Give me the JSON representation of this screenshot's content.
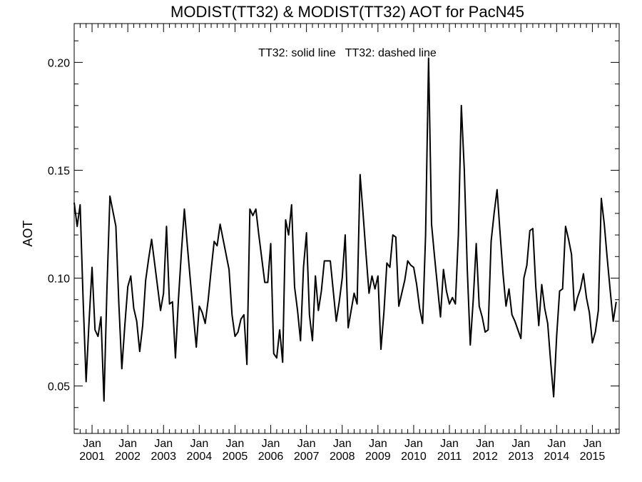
{
  "chart_data": {
    "type": "line",
    "title": "MODIST(TT32) & MODIST(TT32)  AOT for PacN45",
    "ylabel": "AOT",
    "xlabel": "",
    "annotation": "TT32: solid line   TT32: dashed line",
    "ylim": [
      0.028,
      0.218
    ],
    "xlim": [
      "2000-07",
      "2015-10"
    ],
    "y_ticks": [
      {
        "value": 0.05,
        "label": "0.05"
      },
      {
        "value": 0.1,
        "label": "0.10"
      },
      {
        "value": 0.15,
        "label": "0.15"
      },
      {
        "value": 0.2,
        "label": "0.20"
      }
    ],
    "x_ticks": [
      {
        "date": "2001-01",
        "month": "Jan",
        "year": "2001"
      },
      {
        "date": "2002-01",
        "month": "Jan",
        "year": "2002"
      },
      {
        "date": "2003-01",
        "month": "Jan",
        "year": "2003"
      },
      {
        "date": "2004-01",
        "month": "Jan",
        "year": "2004"
      },
      {
        "date": "2005-01",
        "month": "Jan",
        "year": "2005"
      },
      {
        "date": "2006-01",
        "month": "Jan",
        "year": "2006"
      },
      {
        "date": "2007-01",
        "month": "Jan",
        "year": "2007"
      },
      {
        "date": "2008-01",
        "month": "Jan",
        "year": "2008"
      },
      {
        "date": "2009-01",
        "month": "Jan",
        "year": "2009"
      },
      {
        "date": "2010-01",
        "month": "Jan",
        "year": "2010"
      },
      {
        "date": "2011-01",
        "month": "Jan",
        "year": "2011"
      },
      {
        "date": "2012-01",
        "month": "Jan",
        "year": "2012"
      },
      {
        "date": "2013-01",
        "month": "Jan",
        "year": "2013"
      },
      {
        "date": "2014-01",
        "month": "Jan",
        "year": "2014"
      },
      {
        "date": "2015-01",
        "month": "Jan",
        "year": "2015"
      }
    ],
    "series": [
      {
        "style": "solid",
        "color": "#000000",
        "points": [
          [
            "2000-07",
            0.135
          ],
          [
            "2000-08",
            0.124
          ],
          [
            "2000-09",
            0.134
          ],
          [
            "2000-10",
            0.09
          ],
          [
            "2000-11",
            0.052
          ],
          [
            "2000-12",
            0.08
          ],
          [
            "2001-01",
            0.105
          ],
          [
            "2001-02",
            0.076
          ],
          [
            "2001-03",
            0.073
          ],
          [
            "2001-04",
            0.082
          ],
          [
            "2001-05",
            0.043
          ],
          [
            "2001-06",
            0.095
          ],
          [
            "2001-07",
            0.138
          ],
          [
            "2001-08",
            0.131
          ],
          [
            "2001-09",
            0.124
          ],
          [
            "2001-10",
            0.088
          ],
          [
            "2001-11",
            0.058
          ],
          [
            "2001-12",
            0.078
          ],
          [
            "2002-01",
            0.096
          ],
          [
            "2002-02",
            0.101
          ],
          [
            "2002-03",
            0.086
          ],
          [
            "2002-04",
            0.08
          ],
          [
            "2002-05",
            0.066
          ],
          [
            "2002-06",
            0.078
          ],
          [
            "2002-07",
            0.099
          ],
          [
            "2002-08",
            0.109
          ],
          [
            "2002-09",
            0.118
          ],
          [
            "2002-10",
            0.107
          ],
          [
            "2002-11",
            0.096
          ],
          [
            "2002-12",
            0.085
          ],
          [
            "2003-01",
            0.093
          ],
          [
            "2003-02",
            0.124
          ],
          [
            "2003-03",
            0.088
          ],
          [
            "2003-04",
            0.089
          ],
          [
            "2003-05",
            0.063
          ],
          [
            "2003-06",
            0.09
          ],
          [
            "2003-07",
            0.112
          ],
          [
            "2003-08",
            0.132
          ],
          [
            "2003-09",
            0.115
          ],
          [
            "2003-10",
            0.099
          ],
          [
            "2003-11",
            0.083
          ],
          [
            "2003-12",
            0.068
          ],
          [
            "2004-01",
            0.087
          ],
          [
            "2004-02",
            0.084
          ],
          [
            "2004-03",
            0.079
          ],
          [
            "2004-04",
            0.09
          ],
          [
            "2004-05",
            0.104
          ],
          [
            "2004-06",
            0.117
          ],
          [
            "2004-07",
            0.115
          ],
          [
            "2004-08",
            0.125
          ],
          [
            "2004-09",
            0.118
          ],
          [
            "2004-10",
            0.111
          ],
          [
            "2004-11",
            0.104
          ],
          [
            "2004-12",
            0.083
          ],
          [
            "2005-01",
            0.073
          ],
          [
            "2005-02",
            0.075
          ],
          [
            "2005-03",
            0.081
          ],
          [
            "2005-04",
            0.083
          ],
          [
            "2005-05",
            0.06
          ],
          [
            "2005-06",
            0.132
          ],
          [
            "2005-07",
            0.129
          ],
          [
            "2005-08",
            0.132
          ],
          [
            "2005-09",
            0.12
          ],
          [
            "2005-10",
            0.109
          ],
          [
            "2005-11",
            0.098
          ],
          [
            "2005-12",
            0.098
          ],
          [
            "2006-01",
            0.116
          ],
          [
            "2006-02",
            0.065
          ],
          [
            "2006-03",
            0.063
          ],
          [
            "2006-04",
            0.076
          ],
          [
            "2006-05",
            0.061
          ],
          [
            "2006-06",
            0.127
          ],
          [
            "2006-07",
            0.12
          ],
          [
            "2006-08",
            0.134
          ],
          [
            "2006-09",
            0.096
          ],
          [
            "2006-10",
            0.085
          ],
          [
            "2006-11",
            0.071
          ],
          [
            "2006-12",
            0.105
          ],
          [
            "2007-01",
            0.121
          ],
          [
            "2007-02",
            0.083
          ],
          [
            "2007-03",
            0.071
          ],
          [
            "2007-04",
            0.101
          ],
          [
            "2007-05",
            0.085
          ],
          [
            "2007-06",
            0.094
          ],
          [
            "2007-07",
            0.108
          ],
          [
            "2007-08",
            0.108
          ],
          [
            "2007-09",
            0.108
          ],
          [
            "2007-10",
            0.094
          ],
          [
            "2007-11",
            0.08
          ],
          [
            "2007-12",
            0.089
          ],
          [
            "2008-01",
            0.1
          ],
          [
            "2008-02",
            0.12
          ],
          [
            "2008-03",
            0.077
          ],
          [
            "2008-04",
            0.085
          ],
          [
            "2008-05",
            0.093
          ],
          [
            "2008-06",
            0.088
          ],
          [
            "2008-07",
            0.148
          ],
          [
            "2008-08",
            0.13
          ],
          [
            "2008-09",
            0.111
          ],
          [
            "2008-10",
            0.093
          ],
          [
            "2008-11",
            0.101
          ],
          [
            "2008-12",
            0.095
          ],
          [
            "2009-01",
            0.101
          ],
          [
            "2009-02",
            0.067
          ],
          [
            "2009-03",
            0.084
          ],
          [
            "2009-04",
            0.107
          ],
          [
            "2009-05",
            0.105
          ],
          [
            "2009-06",
            0.12
          ],
          [
            "2009-07",
            0.119
          ],
          [
            "2009-08",
            0.087
          ],
          [
            "2009-09",
            0.093
          ],
          [
            "2009-10",
            0.099
          ],
          [
            "2009-11",
            0.108
          ],
          [
            "2009-12",
            0.106
          ],
          [
            "2010-01",
            0.105
          ],
          [
            "2010-02",
            0.097
          ],
          [
            "2010-03",
            0.086
          ],
          [
            "2010-04",
            0.079
          ],
          [
            "2010-05",
            0.12
          ],
          [
            "2010-06",
            0.202
          ],
          [
            "2010-07",
            0.125
          ],
          [
            "2010-08",
            0.11
          ],
          [
            "2010-09",
            0.096
          ],
          [
            "2010-10",
            0.082
          ],
          [
            "2010-11",
            0.104
          ],
          [
            "2010-12",
            0.094
          ],
          [
            "2011-01",
            0.088
          ],
          [
            "2011-02",
            0.091
          ],
          [
            "2011-03",
            0.088
          ],
          [
            "2011-04",
            0.12
          ],
          [
            "2011-05",
            0.18
          ],
          [
            "2011-06",
            0.15
          ],
          [
            "2011-07",
            0.104
          ],
          [
            "2011-08",
            0.069
          ],
          [
            "2011-09",
            0.09
          ],
          [
            "2011-10",
            0.116
          ],
          [
            "2011-11",
            0.087
          ],
          [
            "2011-12",
            0.082
          ],
          [
            "2012-01",
            0.075
          ],
          [
            "2012-02",
            0.076
          ],
          [
            "2012-03",
            0.117
          ],
          [
            "2012-04",
            0.13
          ],
          [
            "2012-05",
            0.141
          ],
          [
            "2012-06",
            0.121
          ],
          [
            "2012-07",
            0.102
          ],
          [
            "2012-08",
            0.087
          ],
          [
            "2012-09",
            0.095
          ],
          [
            "2012-10",
            0.083
          ],
          [
            "2012-11",
            0.08
          ],
          [
            "2012-12",
            0.076
          ],
          [
            "2013-01",
            0.072
          ],
          [
            "2013-02",
            0.1
          ],
          [
            "2013-03",
            0.106
          ],
          [
            "2013-04",
            0.122
          ],
          [
            "2013-05",
            0.123
          ],
          [
            "2013-06",
            0.096
          ],
          [
            "2013-07",
            0.078
          ],
          [
            "2013-08",
            0.097
          ],
          [
            "2013-09",
            0.086
          ],
          [
            "2013-10",
            0.079
          ],
          [
            "2013-11",
            0.061
          ],
          [
            "2013-12",
            0.045
          ],
          [
            "2014-01",
            0.073
          ],
          [
            "2014-02",
            0.094
          ],
          [
            "2014-03",
            0.095
          ],
          [
            "2014-04",
            0.124
          ],
          [
            "2014-05",
            0.118
          ],
          [
            "2014-06",
            0.111
          ],
          [
            "2014-07",
            0.085
          ],
          [
            "2014-08",
            0.091
          ],
          [
            "2014-09",
            0.095
          ],
          [
            "2014-10",
            0.102
          ],
          [
            "2014-11",
            0.091
          ],
          [
            "2014-12",
            0.084
          ],
          [
            "2015-01",
            0.07
          ],
          [
            "2015-02",
            0.075
          ],
          [
            "2015-03",
            0.085
          ],
          [
            "2015-04",
            0.137
          ],
          [
            "2015-05",
            0.125
          ],
          [
            "2015-06",
            0.109
          ],
          [
            "2015-07",
            0.094
          ],
          [
            "2015-08",
            0.08
          ],
          [
            "2015-09",
            0.089
          ]
        ]
      }
    ]
  }
}
